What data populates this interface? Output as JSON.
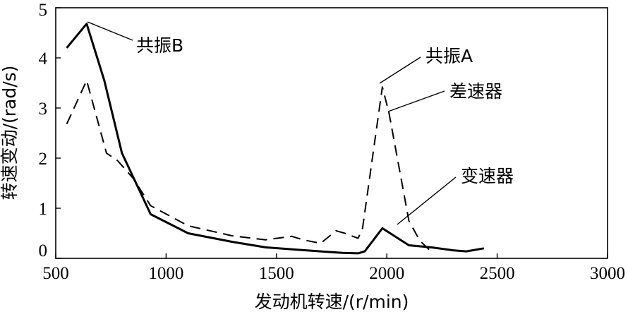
{
  "chart_data": {
    "type": "line",
    "xlabel": "发动机转速/(r/min)",
    "ylabel": "转速变动/(rad/s)",
    "xlim": [
      500,
      3000
    ],
    "ylim": [
      0,
      5
    ],
    "xticks": [
      500,
      1000,
      1500,
      2000,
      2500,
      3000
    ],
    "yticks": [
      0,
      1,
      2,
      3,
      4,
      5
    ],
    "grid": false,
    "series": [
      {
        "name": "变速器",
        "style": "solid",
        "x": [
          550,
          640,
          720,
          800,
          930,
          1100,
          1300,
          1450,
          1600,
          1700,
          1800,
          1870,
          1900,
          1980,
          2100,
          2200,
          2300,
          2360,
          2440
        ],
        "y": [
          4.2,
          4.68,
          3.55,
          2.1,
          0.88,
          0.5,
          0.33,
          0.22,
          0.17,
          0.14,
          0.11,
          0.1,
          0.14,
          0.6,
          0.26,
          0.22,
          0.16,
          0.14,
          0.2
        ]
      },
      {
        "name": "差速器",
        "style": "dashed",
        "x": [
          550,
          640,
          730,
          780,
          850,
          930,
          1100,
          1300,
          1450,
          1570,
          1620,
          1700,
          1770,
          1810,
          1870,
          1890,
          1980,
          2010,
          2100,
          2150,
          2200
        ],
        "y": [
          2.68,
          3.55,
          2.1,
          1.95,
          1.6,
          1.05,
          0.65,
          0.45,
          0.37,
          0.44,
          0.37,
          0.3,
          0.55,
          0.5,
          0.4,
          0.6,
          3.42,
          2.9,
          0.75,
          0.35,
          0.14
        ]
      }
    ],
    "annotations": [
      {
        "text": "共振B"
      },
      {
        "text": "共振A"
      },
      {
        "text": "差速器"
      },
      {
        "text": "变速器"
      }
    ]
  }
}
